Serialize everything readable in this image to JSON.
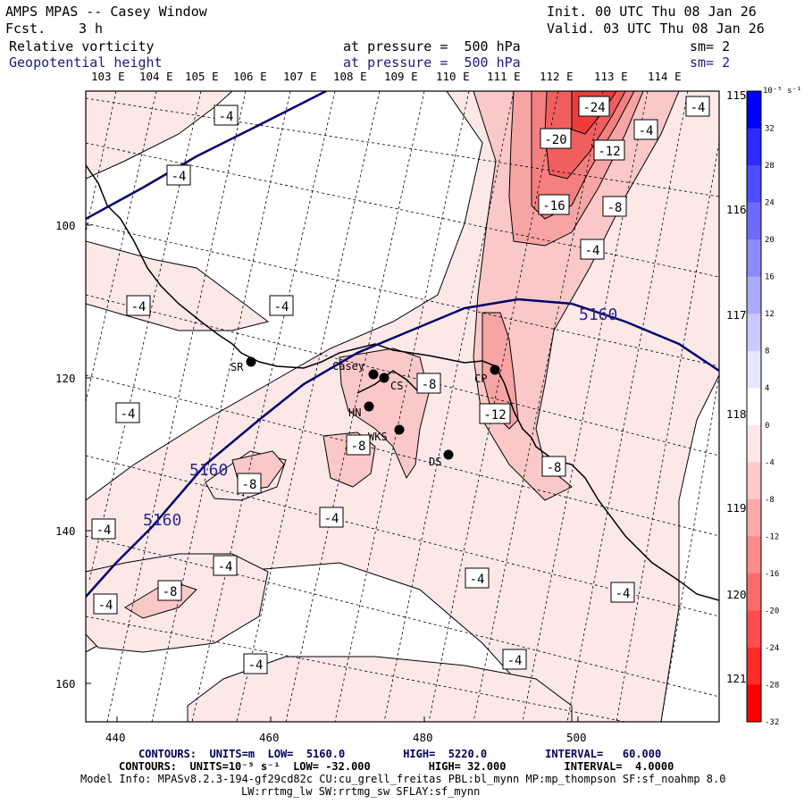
{
  "header": {
    "title": "AMPS MPAS -- Casey Window",
    "fcst_label": "Fcst.",
    "fcst_value": "3 h",
    "init": "Init. 00 UTC Thu 08 Jan 26",
    "valid": "Valid. 03 UTC Thu 08 Jan 26",
    "field1": "Relative vorticity",
    "field1_pressure": "at pressure =  500 hPa",
    "field1_sm": "sm= 2",
    "field2": "Geopotential height",
    "field2_pressure": "at pressure =  500 hPa",
    "field2_sm": "sm= 2"
  },
  "lon_labels": [
    "103 E",
    "104 E",
    "105 E",
    "106 E",
    "107 E",
    "108 E",
    "109 E",
    "110 E",
    "111 E",
    "112 E",
    "113 E",
    "114 E"
  ],
  "lat_labels": [
    "115 E",
    "116 E",
    "117 E",
    "118 E",
    "119 E",
    "120 E",
    "121 E"
  ],
  "x_ticks": [
    "440",
    "460",
    "480",
    "500"
  ],
  "y_ticks": [
    "100",
    "120",
    "140",
    "160"
  ],
  "colorbar": {
    "unit": "10⁻⁵ s⁻¹",
    "labels": [
      "32",
      "28",
      "24",
      "20",
      "16",
      "12",
      "8",
      "4",
      "0",
      "-4",
      "-8",
      "-12",
      "-16",
      "-20",
      "-24",
      "-28",
      "-32"
    ],
    "colors": [
      "#0000ff",
      "#2b2bff",
      "#4d4dff",
      "#6b6bff",
      "#8a8aff",
      "#aaaaff",
      "#cacaff",
      "#e6e6ff",
      "#ffffff",
      "#ffe6e6",
      "#ffcaca",
      "#ffaaaa",
      "#ff8a8a",
      "#ff6b6b",
      "#ff4d4d",
      "#ff2b2b",
      "#ff0000"
    ]
  },
  "stations": [
    {
      "label": "SR"
    },
    {
      "label": "Casey"
    },
    {
      "label": "CS"
    },
    {
      "label": "HN"
    },
    {
      "label": "WKS"
    },
    {
      "label": "DS"
    },
    {
      "label": "CP"
    }
  ],
  "contour_labels": [
    "-4",
    "-4",
    "-4",
    "-4",
    "-4",
    "-4",
    "-4",
    "-4",
    "-4",
    "-4",
    "-4",
    "-4",
    "-4",
    "-4",
    "-4",
    "-24",
    "-20",
    "-12",
    "-16",
    "-8",
    "-8",
    "-8",
    "-8",
    "-8",
    "-8",
    "-12",
    "-8"
  ],
  "height_labels": [
    "5160",
    "5160",
    "5160"
  ],
  "footer": {
    "line1": "CONTOURS:  UNITS=m  LOW=  5160.0         HIGH=  5220.0         INTERVAL=   60.000",
    "line2": "CONTOURS:  UNITS=10⁻⁵ s⁻¹  LOW= -32.000         HIGH= 32.000         INTERVAL=  4.0000",
    "line3": "Model Info: MPASv8.2.3-194-gf29cd82c CU:cu_grell_freitas PBL:bl_mynn MP:mp_thompson SF:sf_noahmp 8.0",
    "line4": "LW:rrtmg_lw SW:rrtmg_sw SFLAY:sf_mynn"
  }
}
